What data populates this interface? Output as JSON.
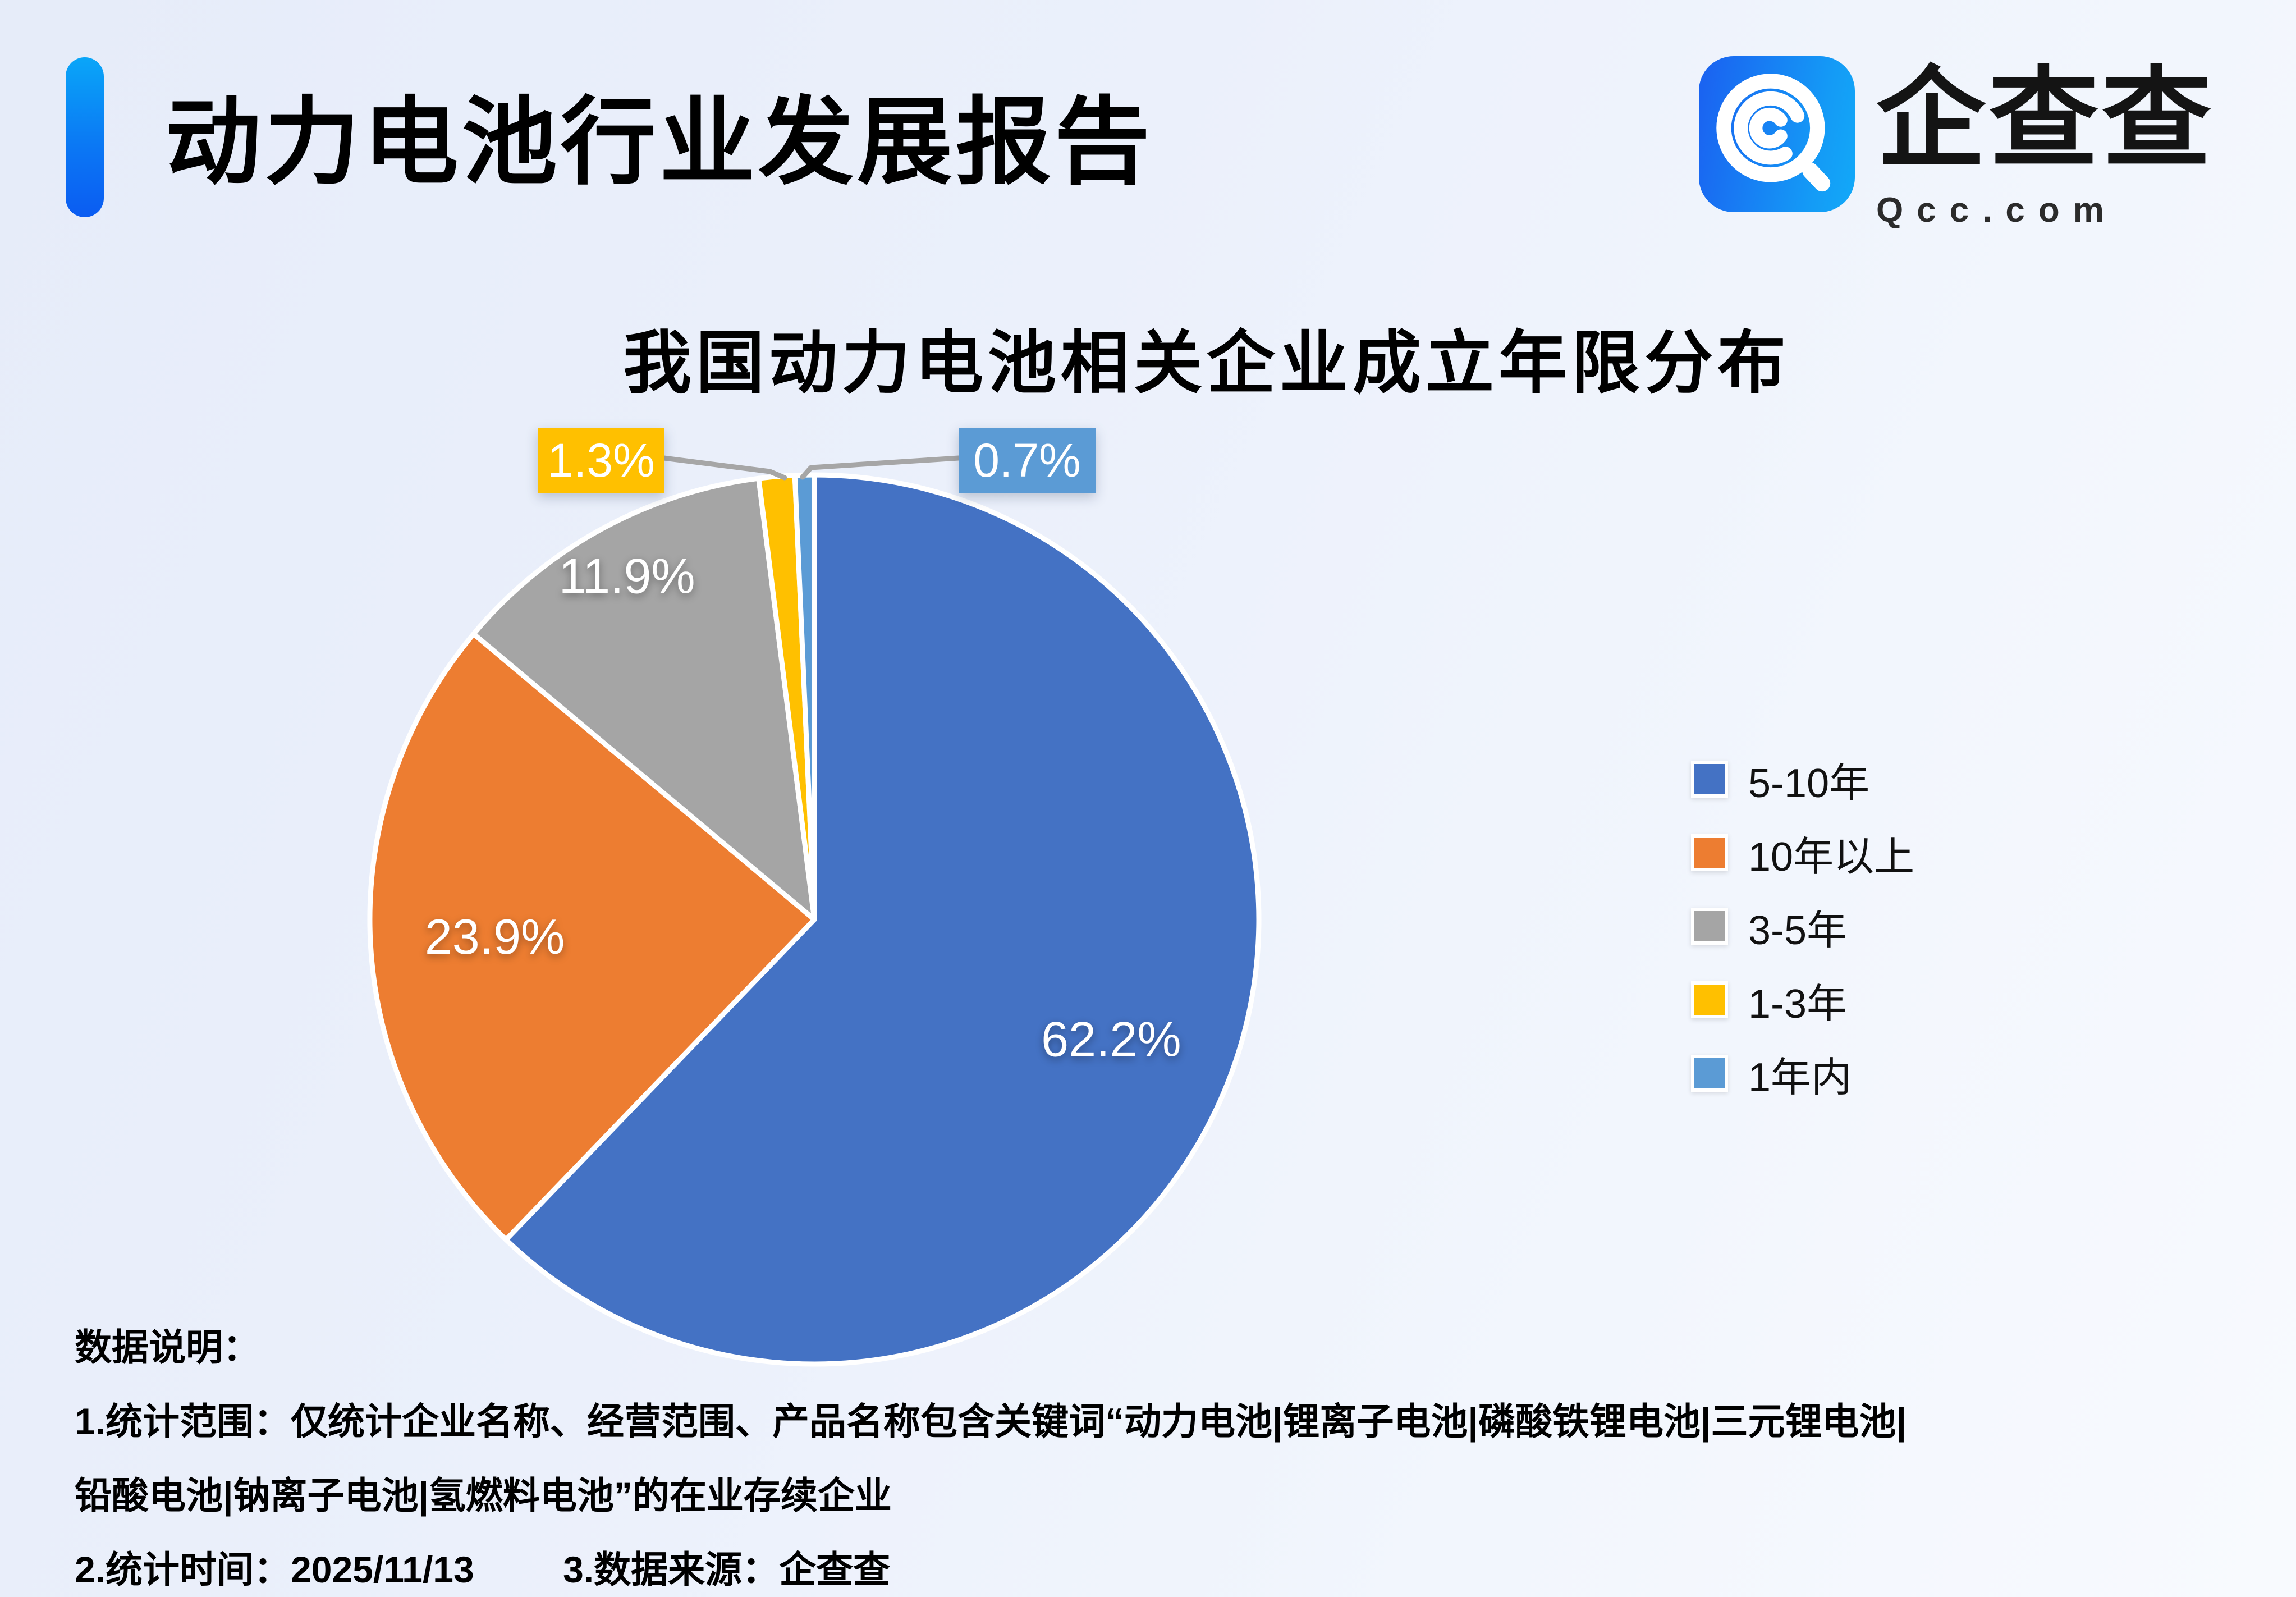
{
  "header": {
    "title": "动力电池行业发展报告",
    "logo": {
      "name": "企查查",
      "domain": "Qcc.com",
      "icon_gradient_start": "#1A64F1",
      "icon_gradient_end": "#12A9F8"
    },
    "accent_color_top": "#0AA6F8",
    "accent_color_bottom": "#0B5CF2"
  },
  "chart_data": {
    "type": "pie",
    "title": "我国动力电池相关企业成立年限分布",
    "unit": "%",
    "direction": "clockwise",
    "start_angle_deg": 0,
    "legend_position": "right",
    "series": [
      {
        "label": "5-10年",
        "value": 62.2,
        "color": "#4472C4",
        "label_style": "inside"
      },
      {
        "label": "10年以上",
        "value": 23.9,
        "color": "#ED7D31",
        "label_style": "inside"
      },
      {
        "label": "3-5年",
        "value": 11.9,
        "color": "#A5A5A5",
        "label_style": "inside"
      },
      {
        "label": "1-3年",
        "value": 1.3,
        "color": "#FFC000",
        "label_style": "callout"
      },
      {
        "label": "1年内",
        "value": 0.7,
        "color": "#5B9BD5",
        "label_style": "callout"
      }
    ],
    "leader_line_color": "#A6A6A6"
  },
  "notes": {
    "heading": "数据说明：",
    "line1": "1.统计范围：仅统计企业名称、经营范围、产品名称包含关键词“动力电池|锂离子电池|磷酸铁锂电池|三元锂电池|",
    "line2": "铅酸电池|钠离子电池|氢燃料电池”的在业存续企业",
    "stat_time": "2.统计时间：2025/11/13",
    "data_source": "3.数据来源：企查查"
  }
}
